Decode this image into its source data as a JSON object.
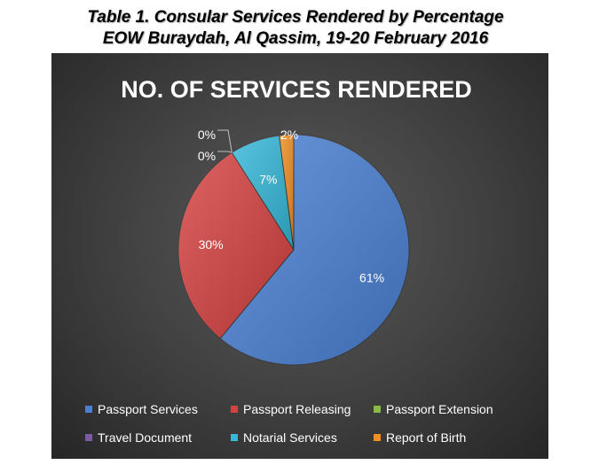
{
  "header": {
    "line1": "Table 1. Consular Services Rendered by Percentage",
    "line2": "EOW Buraydah, Al Qassim, 19-20 February 2016"
  },
  "chart_data": {
    "type": "pie",
    "title": "NO. OF SERVICES RENDERED",
    "legend_position": "bottom",
    "slices": [
      {
        "name": "Passport Services",
        "value": 61,
        "label": "61%",
        "color": "#4a80d4"
      },
      {
        "name": "Passport Releasing",
        "value": 30,
        "label": "30%",
        "color": "#d64040"
      },
      {
        "name": "Passport Extension",
        "value": 0,
        "label": "0%",
        "color": "#8ab84a"
      },
      {
        "name": "Travel Document",
        "value": 0,
        "label": "0%",
        "color": "#7e5aa6"
      },
      {
        "name": "Notarial Services",
        "value": 7,
        "label": "7%",
        "color": "#35b8d8"
      },
      {
        "name": "Report of Birth",
        "value": 2,
        "label": "2%",
        "color": "#f08e22"
      }
    ]
  }
}
